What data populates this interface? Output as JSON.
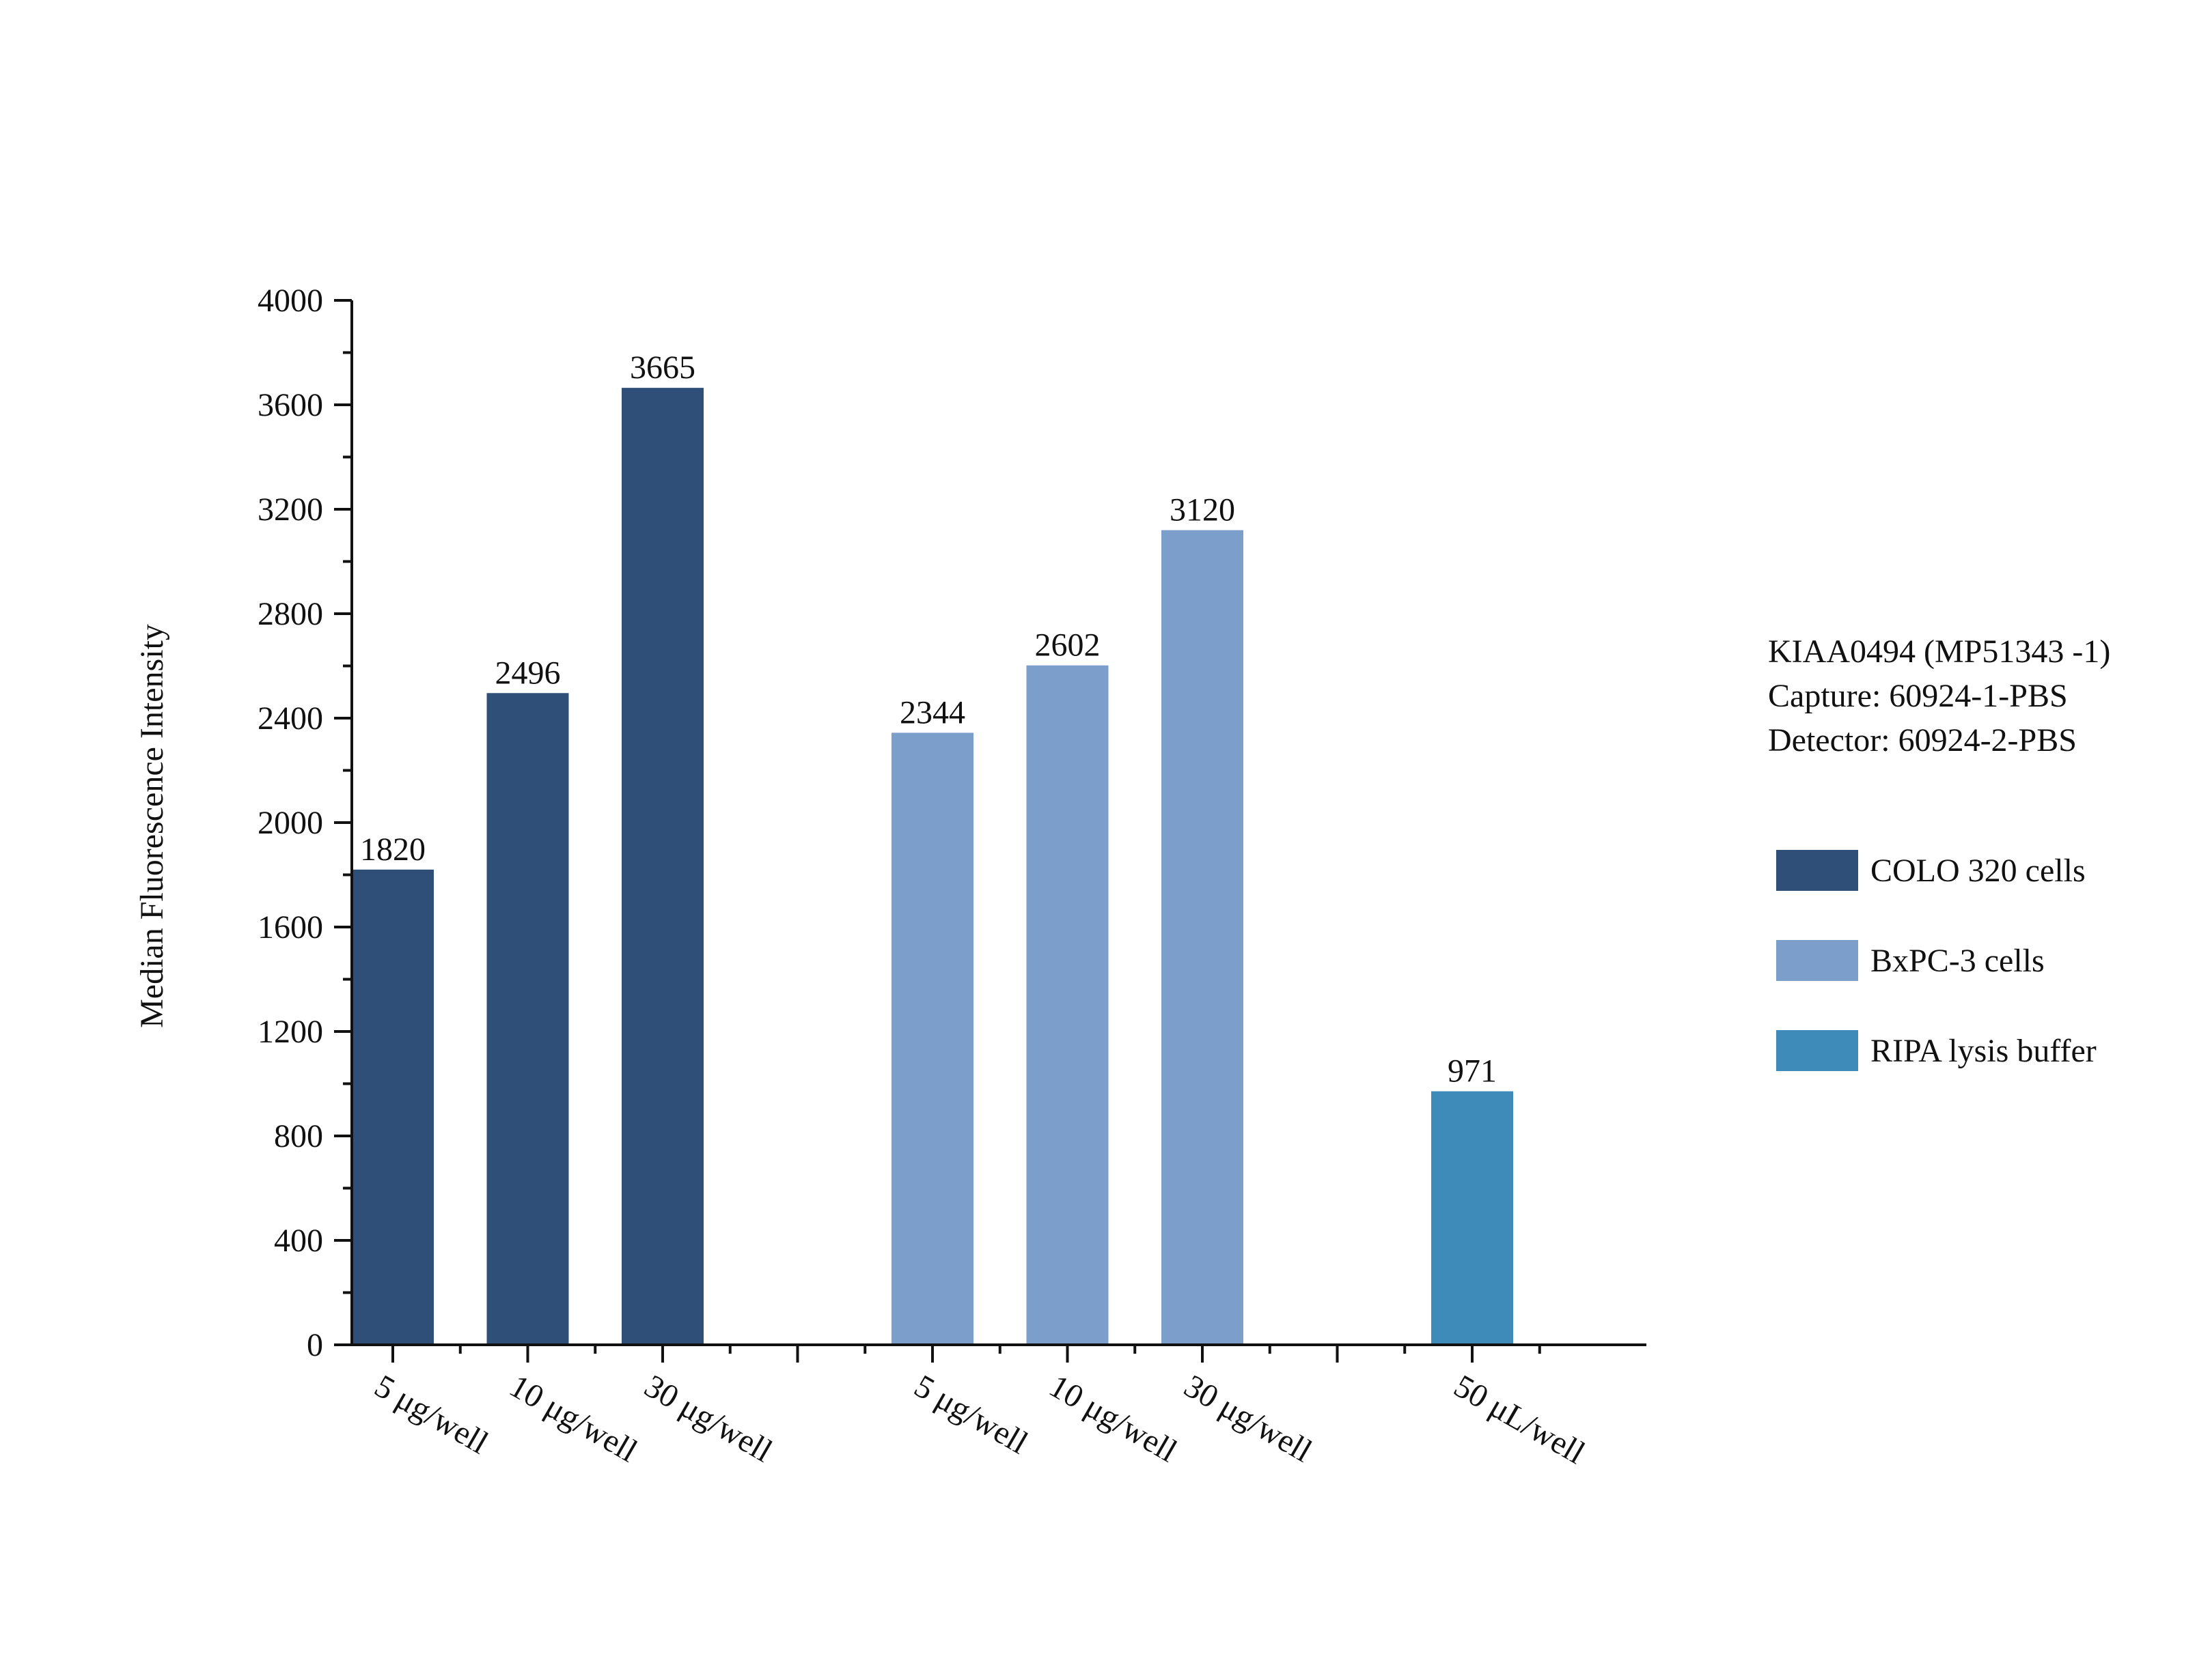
{
  "chart_data": {
    "type": "bar",
    "title": "",
    "xlabel": "",
    "ylabel": "Median Fluorescence Intensity",
    "ylim": [
      0,
      4000
    ],
    "y_ticks": [
      0,
      400,
      800,
      1200,
      1600,
      2000,
      2400,
      2800,
      3200,
      3600,
      4000
    ],
    "grid": false,
    "legend_position": "right",
    "series": [
      {
        "name": "COLO 320 cells",
        "color": "#2f4f78",
        "categories": [
          "5 μg/well",
          "10 μg/well",
          "30 μg/well"
        ],
        "values": [
          1820,
          2496,
          3665
        ]
      },
      {
        "name": "BxPC-3 cells",
        "color": "#7b9ecb",
        "categories": [
          "5 μg/well",
          "10 μg/well",
          "30 μg/well"
        ],
        "values": [
          2344,
          2602,
          3120
        ]
      },
      {
        "name": "RIPA lysis buffer",
        "color": "#3e8ab8",
        "categories": [
          "50 μL/well"
        ],
        "values": [
          971
        ]
      }
    ]
  },
  "info": {
    "lines": [
      "KIAA0494 (MP51343 -1)",
      "Capture: 60924-1-PBS",
      "Detector: 60924-2-PBS"
    ]
  }
}
